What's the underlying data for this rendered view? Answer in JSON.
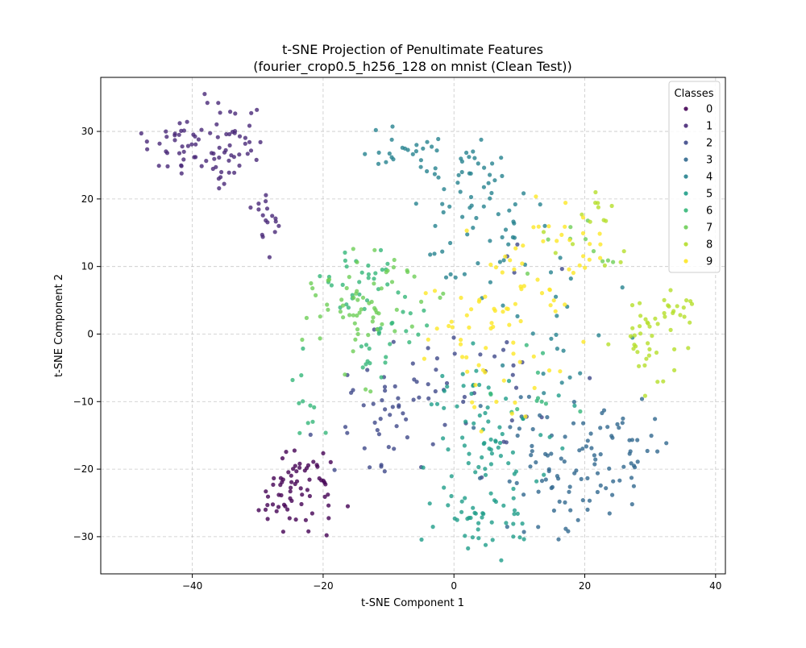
{
  "chart_data": {
    "type": "scatter",
    "title": "t-SNE Projection of Penultimate Features",
    "subtitle": "(fourier_crop0.5_h256_128 on mnist (Clean Test))",
    "xlabel": "t-SNE Component 1",
    "ylabel": "t-SNE Component 2",
    "xlim": [
      -54,
      41.5
    ],
    "ylim": [
      -35.5,
      38
    ],
    "xticks": [
      -40,
      -20,
      0,
      20,
      40
    ],
    "yticks": [
      -30,
      -20,
      -10,
      0,
      10,
      20,
      30
    ],
    "grid": true,
    "legend": {
      "title": "Classes",
      "placement": "top-right"
    },
    "series": [
      {
        "name": "0",
        "color": "#440154",
        "clusters": [
          {
            "cx": -24,
            "cy": -23,
            "sx": 2.8,
            "sy": 3.4,
            "n": 60
          },
          {
            "cx": -21,
            "cy": -20,
            "sx": 1.5,
            "sy": 1.5,
            "n": 8
          }
        ]
      },
      {
        "name": "1",
        "color": "#482878",
        "clusters": [
          {
            "cx": -40,
            "cy": 28,
            "sx": 4.5,
            "sy": 2.6,
            "n": 55
          },
          {
            "cx": -33,
            "cy": 30,
            "sx": 2.0,
            "sy": 3.0,
            "n": 22
          },
          {
            "cx": -35,
            "cy": 23,
            "sx": 1.3,
            "sy": 1.3,
            "n": 6
          },
          {
            "cx": -29,
            "cy": 19,
            "sx": 1.4,
            "sy": 2.8,
            "n": 12
          },
          {
            "cx": -28,
            "cy": 15,
            "sx": 0.8,
            "sy": 1.4,
            "n": 5
          }
        ]
      },
      {
        "name": "2",
        "color": "#3e4989",
        "clusters": [
          {
            "cx": -12,
            "cy": -12,
            "sx": 4.0,
            "sy": 3.5,
            "n": 35
          },
          {
            "cx": -3,
            "cy": -8,
            "sx": 4.5,
            "sy": 5.0,
            "n": 25
          },
          {
            "cx": 8,
            "cy": -5,
            "sx": 5.0,
            "sy": 7.0,
            "n": 20
          }
        ]
      },
      {
        "name": "3",
        "color": "#31688e",
        "clusters": [
          {
            "cx": 17,
            "cy": -18,
            "sx": 4.5,
            "sy": 5.0,
            "n": 60
          },
          {
            "cx": 25,
            "cy": -20,
            "sx": 3.5,
            "sy": 3.0,
            "n": 20
          },
          {
            "cx": 28,
            "cy": -15,
            "sx": 2.5,
            "sy": 2.0,
            "n": 15
          },
          {
            "cx": 17,
            "cy": -27,
            "sx": 2.5,
            "sy": 2.0,
            "n": 12
          }
        ]
      },
      {
        "name": "4",
        "color": "#26828e",
        "clusters": [
          {
            "cx": -8,
            "cy": 26.5,
            "sx": 3.5,
            "sy": 2.0,
            "n": 25
          },
          {
            "cx": 2,
            "cy": 23,
            "sx": 4.5,
            "sy": 3.0,
            "n": 30
          },
          {
            "cx": 5,
            "cy": 15,
            "sx": 5.0,
            "sy": 4.0,
            "n": 35
          },
          {
            "cx": 13,
            "cy": 2,
            "sx": 4.5,
            "sy": 7.0,
            "n": 25
          }
        ]
      },
      {
        "name": "5",
        "color": "#1f9e89",
        "clusters": [
          {
            "cx": 4,
            "cy": -27,
            "sx": 3.5,
            "sy": 3.0,
            "n": 45
          },
          {
            "cx": 6,
            "cy": -17,
            "sx": 4.0,
            "sy": 4.0,
            "n": 45
          },
          {
            "cx": 2,
            "cy": -9,
            "sx": 4.0,
            "sy": 4.0,
            "n": 20
          }
        ]
      },
      {
        "name": "6",
        "color": "#35b779",
        "clusters": [
          {
            "cx": -12,
            "cy": 3,
            "sx": 4.5,
            "sy": 4.5,
            "n": 45
          },
          {
            "cx": -15,
            "cy": 9,
            "sx": 2.5,
            "sy": 2.0,
            "n": 12
          },
          {
            "cx": -23,
            "cy": -11,
            "sx": 2.5,
            "sy": 2.5,
            "n": 10
          },
          {
            "cx": 10,
            "cy": -6,
            "sx": 4.0,
            "sy": 4.0,
            "n": 12
          }
        ]
      },
      {
        "name": "7",
        "color": "#6ece58",
        "clusters": [
          {
            "cx": -16,
            "cy": 2,
            "sx": 3.5,
            "sy": 4.0,
            "n": 35
          },
          {
            "cx": -10,
            "cy": 6,
            "sx": 4.5,
            "sy": 4.0,
            "n": 30
          },
          {
            "cx": 19,
            "cy": 14,
            "sx": 3.5,
            "sy": 4.0,
            "n": 10
          }
        ]
      },
      {
        "name": "8",
        "color": "#b5de2b",
        "clusters": [
          {
            "cx": 29,
            "cy": 0,
            "sx": 3.0,
            "sy": 4.0,
            "n": 35
          },
          {
            "cx": 34,
            "cy": 3,
            "sx": 1.8,
            "sy": 2.0,
            "n": 15
          },
          {
            "cx": 22,
            "cy": 16,
            "sx": 3.0,
            "sy": 3.0,
            "n": 15
          }
        ]
      },
      {
        "name": "9",
        "color": "#fde725",
        "clusters": [
          {
            "cx": 11,
            "cy": 5,
            "sx": 5.5,
            "sy": 6.5,
            "n": 45
          },
          {
            "cx": 0,
            "cy": 1,
            "sx": 3.0,
            "sy": 3.5,
            "n": 20
          },
          {
            "cx": 17,
            "cy": 13,
            "sx": 4.0,
            "sy": 4.0,
            "n": 20
          },
          {
            "cx": 6,
            "cy": -8,
            "sx": 3.0,
            "sy": 3.0,
            "n": 10
          }
        ]
      }
    ]
  }
}
